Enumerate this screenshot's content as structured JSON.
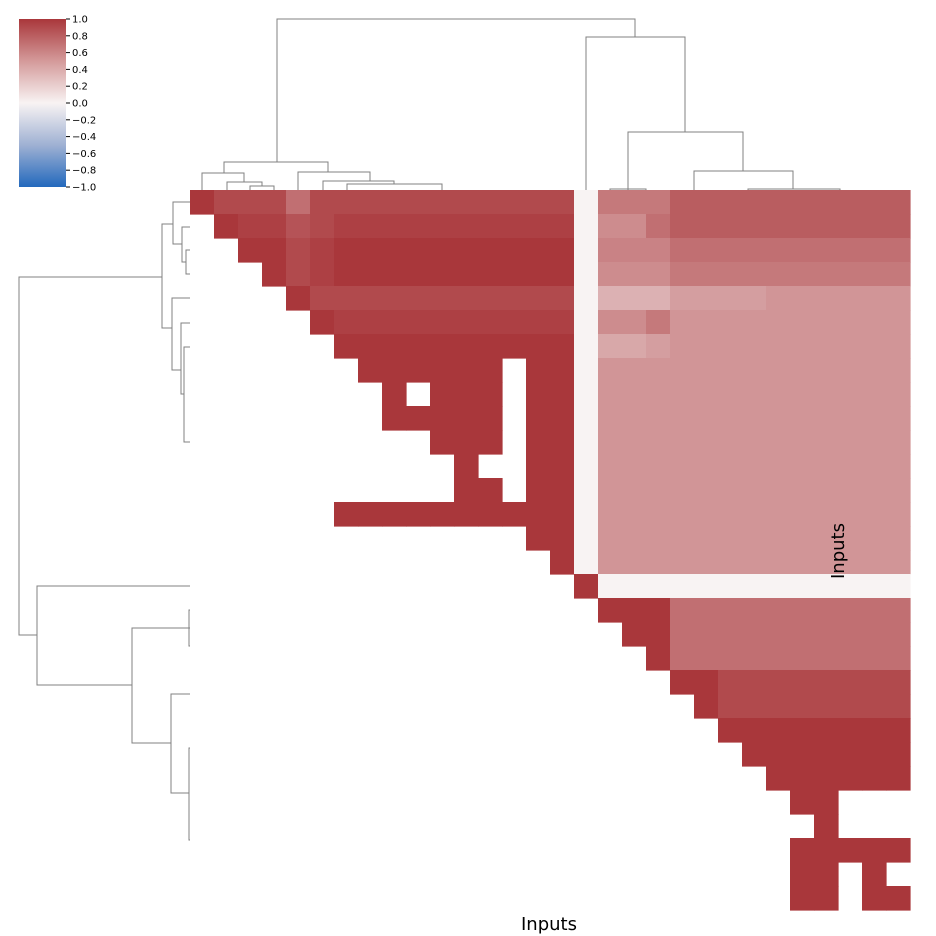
{
  "chart_data": {
    "type": "heatmap",
    "variant": "clustered correlation matrix (upper triangle)",
    "xlabel": "Inputs",
    "ylabel": "Inputs",
    "n": 30,
    "colormap": {
      "name": "vlag",
      "low": "#2369bd",
      "mid": "#f8f3f3",
      "high": "#a9373b",
      "vmin": -1.0,
      "vmax": 1.0
    },
    "colorbar": {
      "ticks": [
        1.0,
        0.8,
        0.6,
        0.4,
        0.2,
        0.0,
        -0.2,
        -0.4,
        -0.6,
        -0.8,
        -1.0
      ],
      "tick_labels": [
        "1.0",
        "0.8",
        "0.6",
        "0.4",
        "0.2",
        "0.0",
        "−0.2",
        "−0.4",
        "−0.6",
        "−0.8",
        "−1.0"
      ],
      "placement": "top-left"
    },
    "dendrograms": {
      "row": "left",
      "column": "top",
      "line_color": "#808080"
    },
    "rows": [
      [
        1.0,
        0.9,
        0.9,
        0.9,
        0.7,
        0.9,
        0.9,
        0.9,
        0.9,
        0.9,
        0.9,
        0.9,
        0.9,
        0.9,
        0.9,
        0.9,
        0.0,
        0.65,
        0.65,
        0.65,
        0.8,
        0.8,
        0.8,
        0.8,
        0.8,
        0.8,
        0.8,
        0.8,
        0.8,
        0.8
      ],
      [
        null,
        1.0,
        0.95,
        0.95,
        0.85,
        0.9,
        0.95,
        0.95,
        0.95,
        0.95,
        0.95,
        0.95,
        0.95,
        0.95,
        0.95,
        0.95,
        0.0,
        0.55,
        0.55,
        0.7,
        0.8,
        0.8,
        0.8,
        0.8,
        0.8,
        0.8,
        0.8,
        0.8,
        0.8,
        0.8
      ],
      [
        null,
        null,
        1.0,
        1.0,
        0.9,
        0.95,
        1.0,
        1.0,
        1.0,
        1.0,
        1.0,
        1.0,
        1.0,
        1.0,
        1.0,
        1.0,
        0.0,
        0.6,
        0.6,
        0.6,
        0.7,
        0.7,
        0.7,
        0.7,
        0.7,
        0.7,
        0.7,
        0.7,
        0.7,
        0.7
      ],
      [
        null,
        null,
        null,
        1.0,
        0.9,
        0.95,
        1.0,
        1.0,
        1.0,
        1.0,
        1.0,
        1.0,
        1.0,
        1.0,
        1.0,
        1.0,
        0.0,
        0.55,
        0.55,
        0.55,
        0.65,
        0.65,
        0.65,
        0.65,
        0.65,
        0.65,
        0.65,
        0.65,
        0.65,
        0.65
      ],
      [
        null,
        null,
        null,
        null,
        1.0,
        0.9,
        0.9,
        0.9,
        0.9,
        0.9,
        0.9,
        0.9,
        0.9,
        0.9,
        0.9,
        0.9,
        0.0,
        0.35,
        0.35,
        0.35,
        0.45,
        0.45,
        0.45,
        0.45,
        0.5,
        0.5,
        0.5,
        0.5,
        0.5,
        0.5
      ],
      [
        null,
        null,
        null,
        null,
        null,
        1.0,
        0.95,
        0.95,
        0.95,
        0.95,
        0.95,
        0.95,
        0.95,
        0.95,
        0.95,
        0.95,
        0.0,
        0.55,
        0.55,
        0.65,
        0.5,
        0.5,
        0.5,
        0.5,
        0.5,
        0.5,
        0.5,
        0.5,
        0.5,
        0.5
      ],
      [
        null,
        null,
        null,
        null,
        null,
        null,
        1.0,
        1.0,
        1.0,
        1.0,
        1.0,
        1.0,
        1.0,
        1.0,
        1.0,
        1.0,
        0.0,
        0.4,
        0.4,
        0.45,
        0.5,
        0.5,
        0.5,
        0.5,
        0.5,
        0.5,
        0.5,
        0.5,
        0.5,
        0.5
      ],
      [
        null,
        null,
        null,
        null,
        null,
        null,
        null,
        1.0,
        1.0,
        1.0,
        1.0,
        1.0,
        1.0,
        null,
        1.0,
        1.0,
        0.0,
        0.5,
        0.5,
        0.5,
        0.5,
        0.5,
        0.5,
        0.5,
        0.5,
        0.5,
        0.5,
        0.5,
        0.5,
        0.5
      ],
      [
        null,
        null,
        null,
        null,
        null,
        null,
        null,
        null,
        1.0,
        null,
        1.0,
        1.0,
        1.0,
        null,
        1.0,
        1.0,
        0.0,
        0.5,
        0.5,
        0.5,
        0.5,
        0.5,
        0.5,
        0.5,
        0.5,
        0.5,
        0.5,
        0.5,
        0.5,
        0.5
      ],
      [
        null,
        null,
        null,
        null,
        null,
        null,
        null,
        null,
        1.0,
        1.0,
        1.0,
        1.0,
        1.0,
        null,
        1.0,
        1.0,
        0.0,
        0.5,
        0.5,
        0.5,
        0.5,
        0.5,
        0.5,
        0.5,
        0.5,
        0.5,
        0.5,
        0.5,
        0.5,
        0.5
      ],
      [
        null,
        null,
        null,
        null,
        null,
        null,
        null,
        null,
        null,
        null,
        1.0,
        1.0,
        1.0,
        null,
        1.0,
        1.0,
        0.0,
        0.5,
        0.5,
        0.5,
        0.5,
        0.5,
        0.5,
        0.5,
        0.5,
        0.5,
        0.5,
        0.5,
        0.5,
        0.5
      ],
      [
        null,
        null,
        null,
        null,
        null,
        null,
        null,
        null,
        null,
        null,
        null,
        1.0,
        null,
        null,
        1.0,
        1.0,
        0.0,
        0.5,
        0.5,
        0.5,
        0.5,
        0.5,
        0.5,
        0.5,
        0.5,
        0.5,
        0.5,
        0.5,
        0.5,
        0.5
      ],
      [
        null,
        null,
        null,
        null,
        null,
        null,
        null,
        null,
        null,
        null,
        null,
        1.0,
        1.0,
        null,
        1.0,
        1.0,
        0.0,
        0.5,
        0.5,
        0.5,
        0.5,
        0.5,
        0.5,
        0.5,
        0.5,
        0.5,
        0.5,
        0.5,
        0.5,
        0.5
      ],
      [
        null,
        null,
        null,
        null,
        null,
        null,
        1.0,
        1.0,
        1.0,
        1.0,
        1.0,
        1.0,
        1.0,
        1.0,
        1.0,
        1.0,
        0.0,
        0.5,
        0.5,
        0.5,
        0.5,
        0.5,
        0.5,
        0.5,
        0.5,
        0.5,
        0.5,
        0.5,
        0.5,
        0.5
      ],
      [
        null,
        null,
        null,
        null,
        null,
        null,
        null,
        null,
        null,
        null,
        null,
        null,
        null,
        null,
        1.0,
        1.0,
        0.0,
        0.5,
        0.5,
        0.5,
        0.5,
        0.5,
        0.5,
        0.5,
        0.5,
        0.5,
        0.5,
        0.5,
        0.5,
        0.5
      ],
      [
        null,
        null,
        null,
        null,
        null,
        null,
        null,
        null,
        null,
        null,
        null,
        null,
        null,
        null,
        null,
        1.0,
        0.0,
        0.5,
        0.5,
        0.5,
        0.5,
        0.5,
        0.5,
        0.5,
        0.5,
        0.5,
        0.5,
        0.5,
        0.5,
        0.5
      ],
      [
        null,
        null,
        null,
        null,
        null,
        null,
        null,
        null,
        null,
        null,
        null,
        null,
        null,
        null,
        null,
        null,
        1.0,
        0.0,
        0.0,
        0.0,
        0.0,
        0.0,
        0.0,
        0.0,
        0.0,
        0.0,
        0.0,
        0.0,
        0.0,
        0.0
      ],
      [
        null,
        null,
        null,
        null,
        null,
        null,
        null,
        null,
        null,
        null,
        null,
        null,
        null,
        null,
        null,
        null,
        null,
        1.0,
        1.0,
        1.0,
        0.7,
        0.7,
        0.7,
        0.7,
        0.7,
        0.7,
        0.7,
        0.7,
        0.7,
        0.7
      ],
      [
        null,
        null,
        null,
        null,
        null,
        null,
        null,
        null,
        null,
        null,
        null,
        null,
        null,
        null,
        null,
        null,
        null,
        null,
        1.0,
        1.0,
        0.7,
        0.7,
        0.7,
        0.7,
        0.7,
        0.7,
        0.7,
        0.7,
        0.7,
        0.7
      ],
      [
        null,
        null,
        null,
        null,
        null,
        null,
        null,
        null,
        null,
        null,
        null,
        null,
        null,
        null,
        null,
        null,
        null,
        null,
        null,
        1.0,
        0.7,
        0.7,
        0.7,
        0.7,
        0.7,
        0.7,
        0.7,
        0.7,
        0.7,
        0.7
      ],
      [
        null,
        null,
        null,
        null,
        null,
        null,
        null,
        null,
        null,
        null,
        null,
        null,
        null,
        null,
        null,
        null,
        null,
        null,
        null,
        null,
        1.0,
        1.0,
        0.9,
        0.9,
        0.9,
        0.9,
        0.9,
        0.9,
        0.9,
        0.9
      ],
      [
        null,
        null,
        null,
        null,
        null,
        null,
        null,
        null,
        null,
        null,
        null,
        null,
        null,
        null,
        null,
        null,
        null,
        null,
        null,
        null,
        null,
        1.0,
        0.9,
        0.9,
        0.9,
        0.9,
        0.9,
        0.9,
        0.9,
        0.9
      ],
      [
        null,
        null,
        null,
        null,
        null,
        null,
        null,
        null,
        null,
        null,
        null,
        null,
        null,
        null,
        null,
        null,
        null,
        null,
        null,
        null,
        null,
        null,
        1.0,
        1.0,
        1.0,
        1.0,
        1.0,
        1.0,
        1.0,
        1.0
      ],
      [
        null,
        null,
        null,
        null,
        null,
        null,
        null,
        null,
        null,
        null,
        null,
        null,
        null,
        null,
        null,
        null,
        null,
        null,
        null,
        null,
        null,
        null,
        null,
        1.0,
        1.0,
        1.0,
        1.0,
        1.0,
        1.0,
        1.0
      ],
      [
        null,
        null,
        null,
        null,
        null,
        null,
        null,
        null,
        null,
        null,
        null,
        null,
        null,
        null,
        null,
        null,
        null,
        null,
        null,
        null,
        null,
        null,
        null,
        null,
        1.0,
        1.0,
        1.0,
        1.0,
        1.0,
        1.0
      ],
      [
        null,
        null,
        null,
        null,
        null,
        null,
        null,
        null,
        null,
        null,
        null,
        null,
        null,
        null,
        null,
        null,
        null,
        null,
        null,
        null,
        null,
        null,
        null,
        null,
        null,
        1.0,
        1.0,
        null,
        null,
        null
      ],
      [
        null,
        null,
        null,
        null,
        null,
        null,
        null,
        null,
        null,
        null,
        null,
        null,
        null,
        null,
        null,
        null,
        null,
        null,
        null,
        null,
        null,
        null,
        null,
        null,
        null,
        null,
        1.0,
        null,
        null,
        null
      ],
      [
        null,
        null,
        null,
        null,
        null,
        null,
        null,
        null,
        null,
        null,
        null,
        null,
        null,
        null,
        null,
        null,
        null,
        null,
        null,
        null,
        null,
        null,
        null,
        null,
        null,
        1.0,
        1.0,
        1.0,
        1.0,
        1.0
      ],
      [
        null,
        null,
        null,
        null,
        null,
        null,
        null,
        null,
        null,
        null,
        null,
        null,
        null,
        null,
        null,
        null,
        null,
        null,
        null,
        null,
        null,
        null,
        null,
        null,
        null,
        1.0,
        1.0,
        null,
        1.0,
        null
      ],
      [
        null,
        null,
        null,
        null,
        null,
        null,
        null,
        null,
        null,
        null,
        null,
        null,
        null,
        null,
        null,
        null,
        null,
        null,
        null,
        null,
        null,
        null,
        null,
        null,
        null,
        1.0,
        1.0,
        null,
        1.0,
        1.0
      ]
    ]
  }
}
